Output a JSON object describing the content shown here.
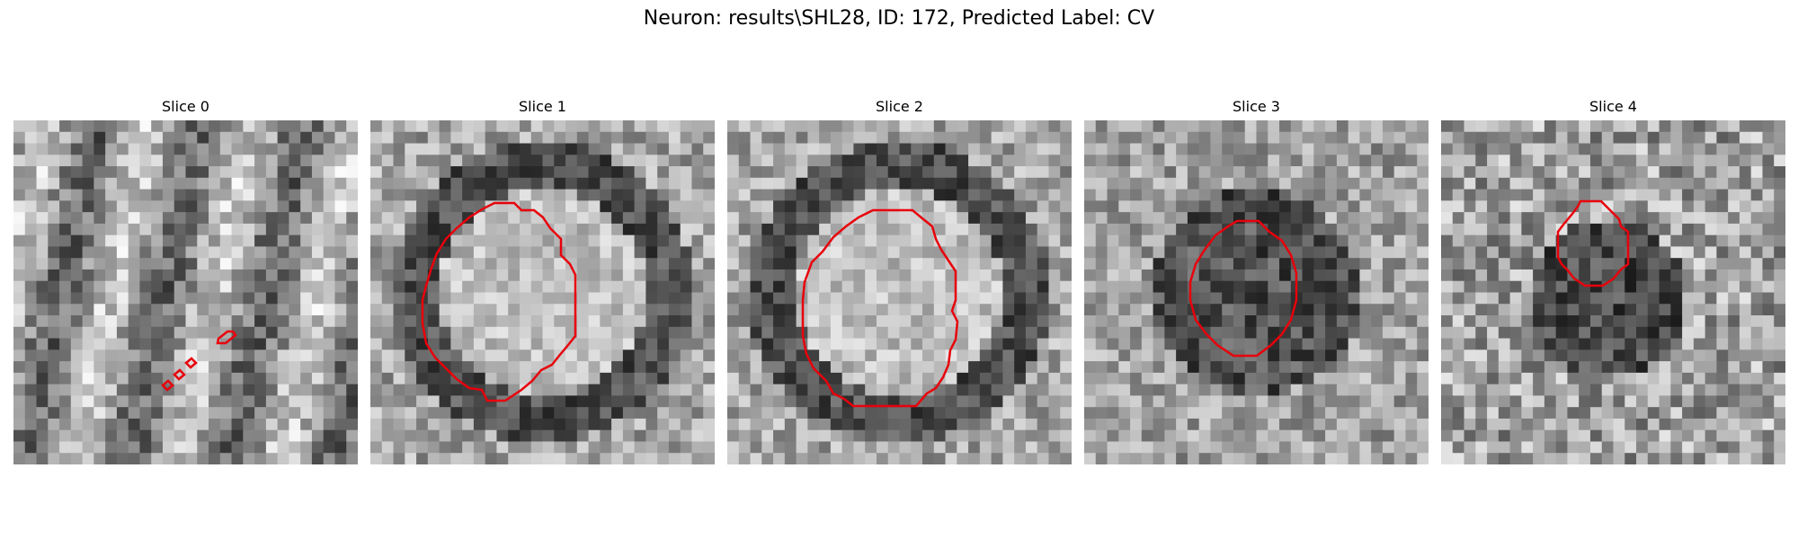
{
  "figure": {
    "title": "Neuron: results\\SHL28, ID: 172, Predicted Label: CV",
    "contour_color": "#e8000b",
    "colormap": "gray",
    "grid_cells": 30,
    "panels": [
      {
        "title": "Slice 0",
        "pattern": "streaks",
        "contour": "small-diagonal"
      },
      {
        "title": "Slice 1",
        "pattern": "ring-bright-center",
        "contour": "large-circle"
      },
      {
        "title": "Slice 2",
        "pattern": "ring-bright-center",
        "contour": "large-circle"
      },
      {
        "title": "Slice 3",
        "pattern": "dark-blob",
        "contour": "medium-circle"
      },
      {
        "title": "Slice 4",
        "pattern": "dark-blob-noisy",
        "contour": "small-circle"
      }
    ]
  }
}
